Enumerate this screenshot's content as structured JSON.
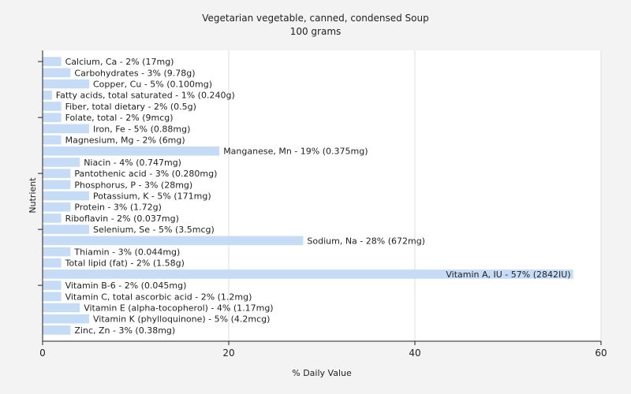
{
  "chart_data": {
    "type": "bar",
    "orientation": "horizontal",
    "title": "Vegetarian vegetable, canned, condensed Soup",
    "subtitle": "100 grams",
    "xlabel": "% Daily Value",
    "ylabel": "Nutrient",
    "xlim": [
      0,
      60
    ],
    "xticks": [
      0,
      20,
      40,
      60
    ],
    "grid": true,
    "colors": {
      "bar": "#c6dcf6",
      "background": "#f3f3f3",
      "plot_background": "#ffffff"
    },
    "categories": [
      "Calcium, Ca",
      "Carbohydrates",
      "Copper, Cu",
      "Fatty acids, total saturated",
      "Fiber, total dietary",
      "Folate, total",
      "Iron, Fe",
      "Magnesium, Mg",
      "Manganese, Mn",
      "Niacin",
      "Pantothenic acid",
      "Phosphorus, P",
      "Potassium, K",
      "Protein",
      "Riboflavin",
      "Selenium, Se",
      "Sodium, Na",
      "Thiamin",
      "Total lipid (fat)",
      "Vitamin A, IU",
      "Vitamin B-6",
      "Vitamin C, total ascorbic acid",
      "Vitamin E (alpha-tocopherol)",
      "Vitamin K (phylloquinone)",
      "Zinc, Zn"
    ],
    "values": [
      2,
      3,
      5,
      1,
      2,
      2,
      5,
      2,
      19,
      4,
      3,
      3,
      5,
      3,
      2,
      5,
      28,
      3,
      2,
      57,
      2,
      2,
      4,
      5,
      3
    ],
    "labels": [
      "Calcium, Ca - 2% (17mg)",
      "Carbohydrates - 3% (9.78g)",
      "Copper, Cu - 5% (0.100mg)",
      "Fatty acids, total saturated - 1% (0.240g)",
      "Fiber, total dietary - 2% (0.5g)",
      "Folate, total - 2% (9mcg)",
      "Iron, Fe - 5% (0.88mg)",
      "Magnesium, Mg - 2% (6mg)",
      "Manganese, Mn - 19% (0.375mg)",
      "Niacin - 4% (0.747mg)",
      "Pantothenic acid - 3% (0.280mg)",
      "Phosphorus, P - 3% (28mg)",
      "Potassium, K - 5% (171mg)",
      "Protein - 3% (1.72g)",
      "Riboflavin - 2% (0.037mg)",
      "Selenium, Se - 5% (3.5mcg)",
      "Sodium, Na - 28% (672mg)",
      "Thiamin - 3% (0.044mg)",
      "Total lipid (fat) - 2% (1.58g)",
      "Vitamin A, IU - 57% (2842IU)",
      "Vitamin B-6 - 2% (0.045mg)",
      "Vitamin C, total ascorbic acid - 2% (1.2mg)",
      "Vitamin E (alpha-tocopherol) - 4% (1.17mg)",
      "Vitamin K (phylloquinone) - 5% (4.2mcg)",
      "Zinc, Zn - 3% (0.38mg)"
    ]
  }
}
